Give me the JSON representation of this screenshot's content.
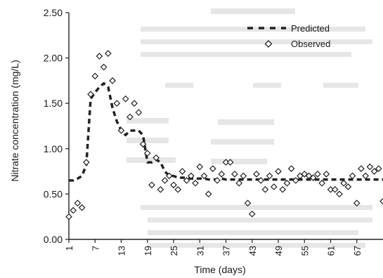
{
  "chart_data": {
    "type": "line",
    "title": "",
    "xlabel": "Time (days)",
    "ylabel": "Nitrate concentration (mg/L)",
    "ylim": [
      0,
      2.5
    ],
    "xlim": [
      1,
      73
    ],
    "y_ticks": [
      0,
      0.5,
      1.0,
      1.5,
      2.0,
      2.5
    ],
    "y_tick_labels": [
      "0.00",
      "0.50",
      "1.00",
      "1.50",
      "2.00",
      "2.50"
    ],
    "x_ticks": [
      1,
      7,
      13,
      19,
      25,
      31,
      37,
      43,
      49,
      55,
      61,
      67
    ],
    "x_tick_labels": [
      "1",
      "7",
      "13",
      "19",
      "25",
      "31",
      "37",
      "43",
      "49",
      "55",
      "61",
      "67"
    ],
    "legend_position": "top-right",
    "grid": false,
    "series": [
      {
        "name": "Predicted",
        "style": "dashed-line",
        "color": "#333333",
        "x": [
          1,
          2,
          3,
          4,
          5,
          6,
          7,
          8,
          9,
          10,
          11,
          12,
          13,
          14,
          15,
          16,
          17,
          18,
          19,
          20,
          21,
          22,
          23,
          24,
          25,
          26,
          27,
          28,
          29,
          30,
          31,
          32,
          33,
          34,
          35,
          36,
          37,
          38,
          39,
          40,
          41,
          42,
          43,
          44,
          45,
          46,
          47,
          48,
          49,
          50,
          51,
          52,
          53,
          54,
          55,
          56,
          57,
          58,
          59,
          60,
          61,
          62,
          63,
          64,
          65,
          66,
          67,
          68,
          69,
          70,
          71,
          72,
          73
        ],
        "y": [
          0.65,
          0.65,
          0.67,
          0.7,
          0.82,
          1.55,
          1.62,
          1.68,
          1.72,
          1.68,
          1.45,
          1.3,
          1.2,
          1.15,
          1.2,
          1.2,
          1.2,
          1.15,
          0.85,
          0.85,
          0.88,
          0.85,
          0.75,
          0.7,
          0.7,
          0.68,
          0.68,
          0.68,
          0.67,
          0.67,
          0.67,
          0.67,
          0.66,
          0.66,
          0.66,
          0.67,
          0.66,
          0.66,
          0.66,
          0.66,
          0.66,
          0.66,
          0.66,
          0.66,
          0.66,
          0.66,
          0.66,
          0.66,
          0.66,
          0.66,
          0.66,
          0.66,
          0.66,
          0.66,
          0.66,
          0.66,
          0.66,
          0.66,
          0.66,
          0.66,
          0.66,
          0.66,
          0.66,
          0.66,
          0.66,
          0.66,
          0.66,
          0.66,
          0.66,
          0.66,
          0.66,
          0.66,
          0.66
        ]
      },
      {
        "name": "Observed",
        "style": "diamond-markers",
        "color": "#333333",
        "x": [
          1,
          2,
          3,
          4,
          5,
          6,
          7,
          8,
          9,
          10,
          11,
          12,
          13,
          14,
          15,
          16,
          17,
          18,
          19,
          20,
          21,
          22,
          23,
          24,
          25,
          26,
          27,
          28,
          29,
          30,
          31,
          32,
          33,
          34,
          35,
          36,
          37,
          38,
          39,
          40,
          41,
          42,
          43,
          44,
          45,
          46,
          47,
          48,
          49,
          50,
          51,
          52,
          53,
          54,
          55,
          56,
          57,
          58,
          59,
          60,
          61,
          62,
          63,
          64,
          65,
          66,
          67,
          68,
          69,
          70,
          71,
          72,
          73
        ],
        "y": [
          0.25,
          0.32,
          0.4,
          0.35,
          0.85,
          1.6,
          1.8,
          2.02,
          1.9,
          2.05,
          1.75,
          1.5,
          1.2,
          1.55,
          1.35,
          1.5,
          1.4,
          1.05,
          0.95,
          0.6,
          0.9,
          0.55,
          0.65,
          0.7,
          0.6,
          0.55,
          0.75,
          0.65,
          0.7,
          0.62,
          0.8,
          0.7,
          0.5,
          0.78,
          0.65,
          0.72,
          0.85,
          0.85,
          0.72,
          0.62,
          0.7,
          0.4,
          0.28,
          0.72,
          0.65,
          0.55,
          0.7,
          0.58,
          0.75,
          0.55,
          0.62,
          0.78,
          0.65,
          0.7,
          0.72,
          0.7,
          0.68,
          0.72,
          0.62,
          0.72,
          0.55,
          0.55,
          0.5,
          0.62,
          0.58,
          0.7,
          0.4,
          0.78,
          0.7,
          0.8,
          0.75,
          0.78,
          0.42
        ]
      }
    ]
  }
}
